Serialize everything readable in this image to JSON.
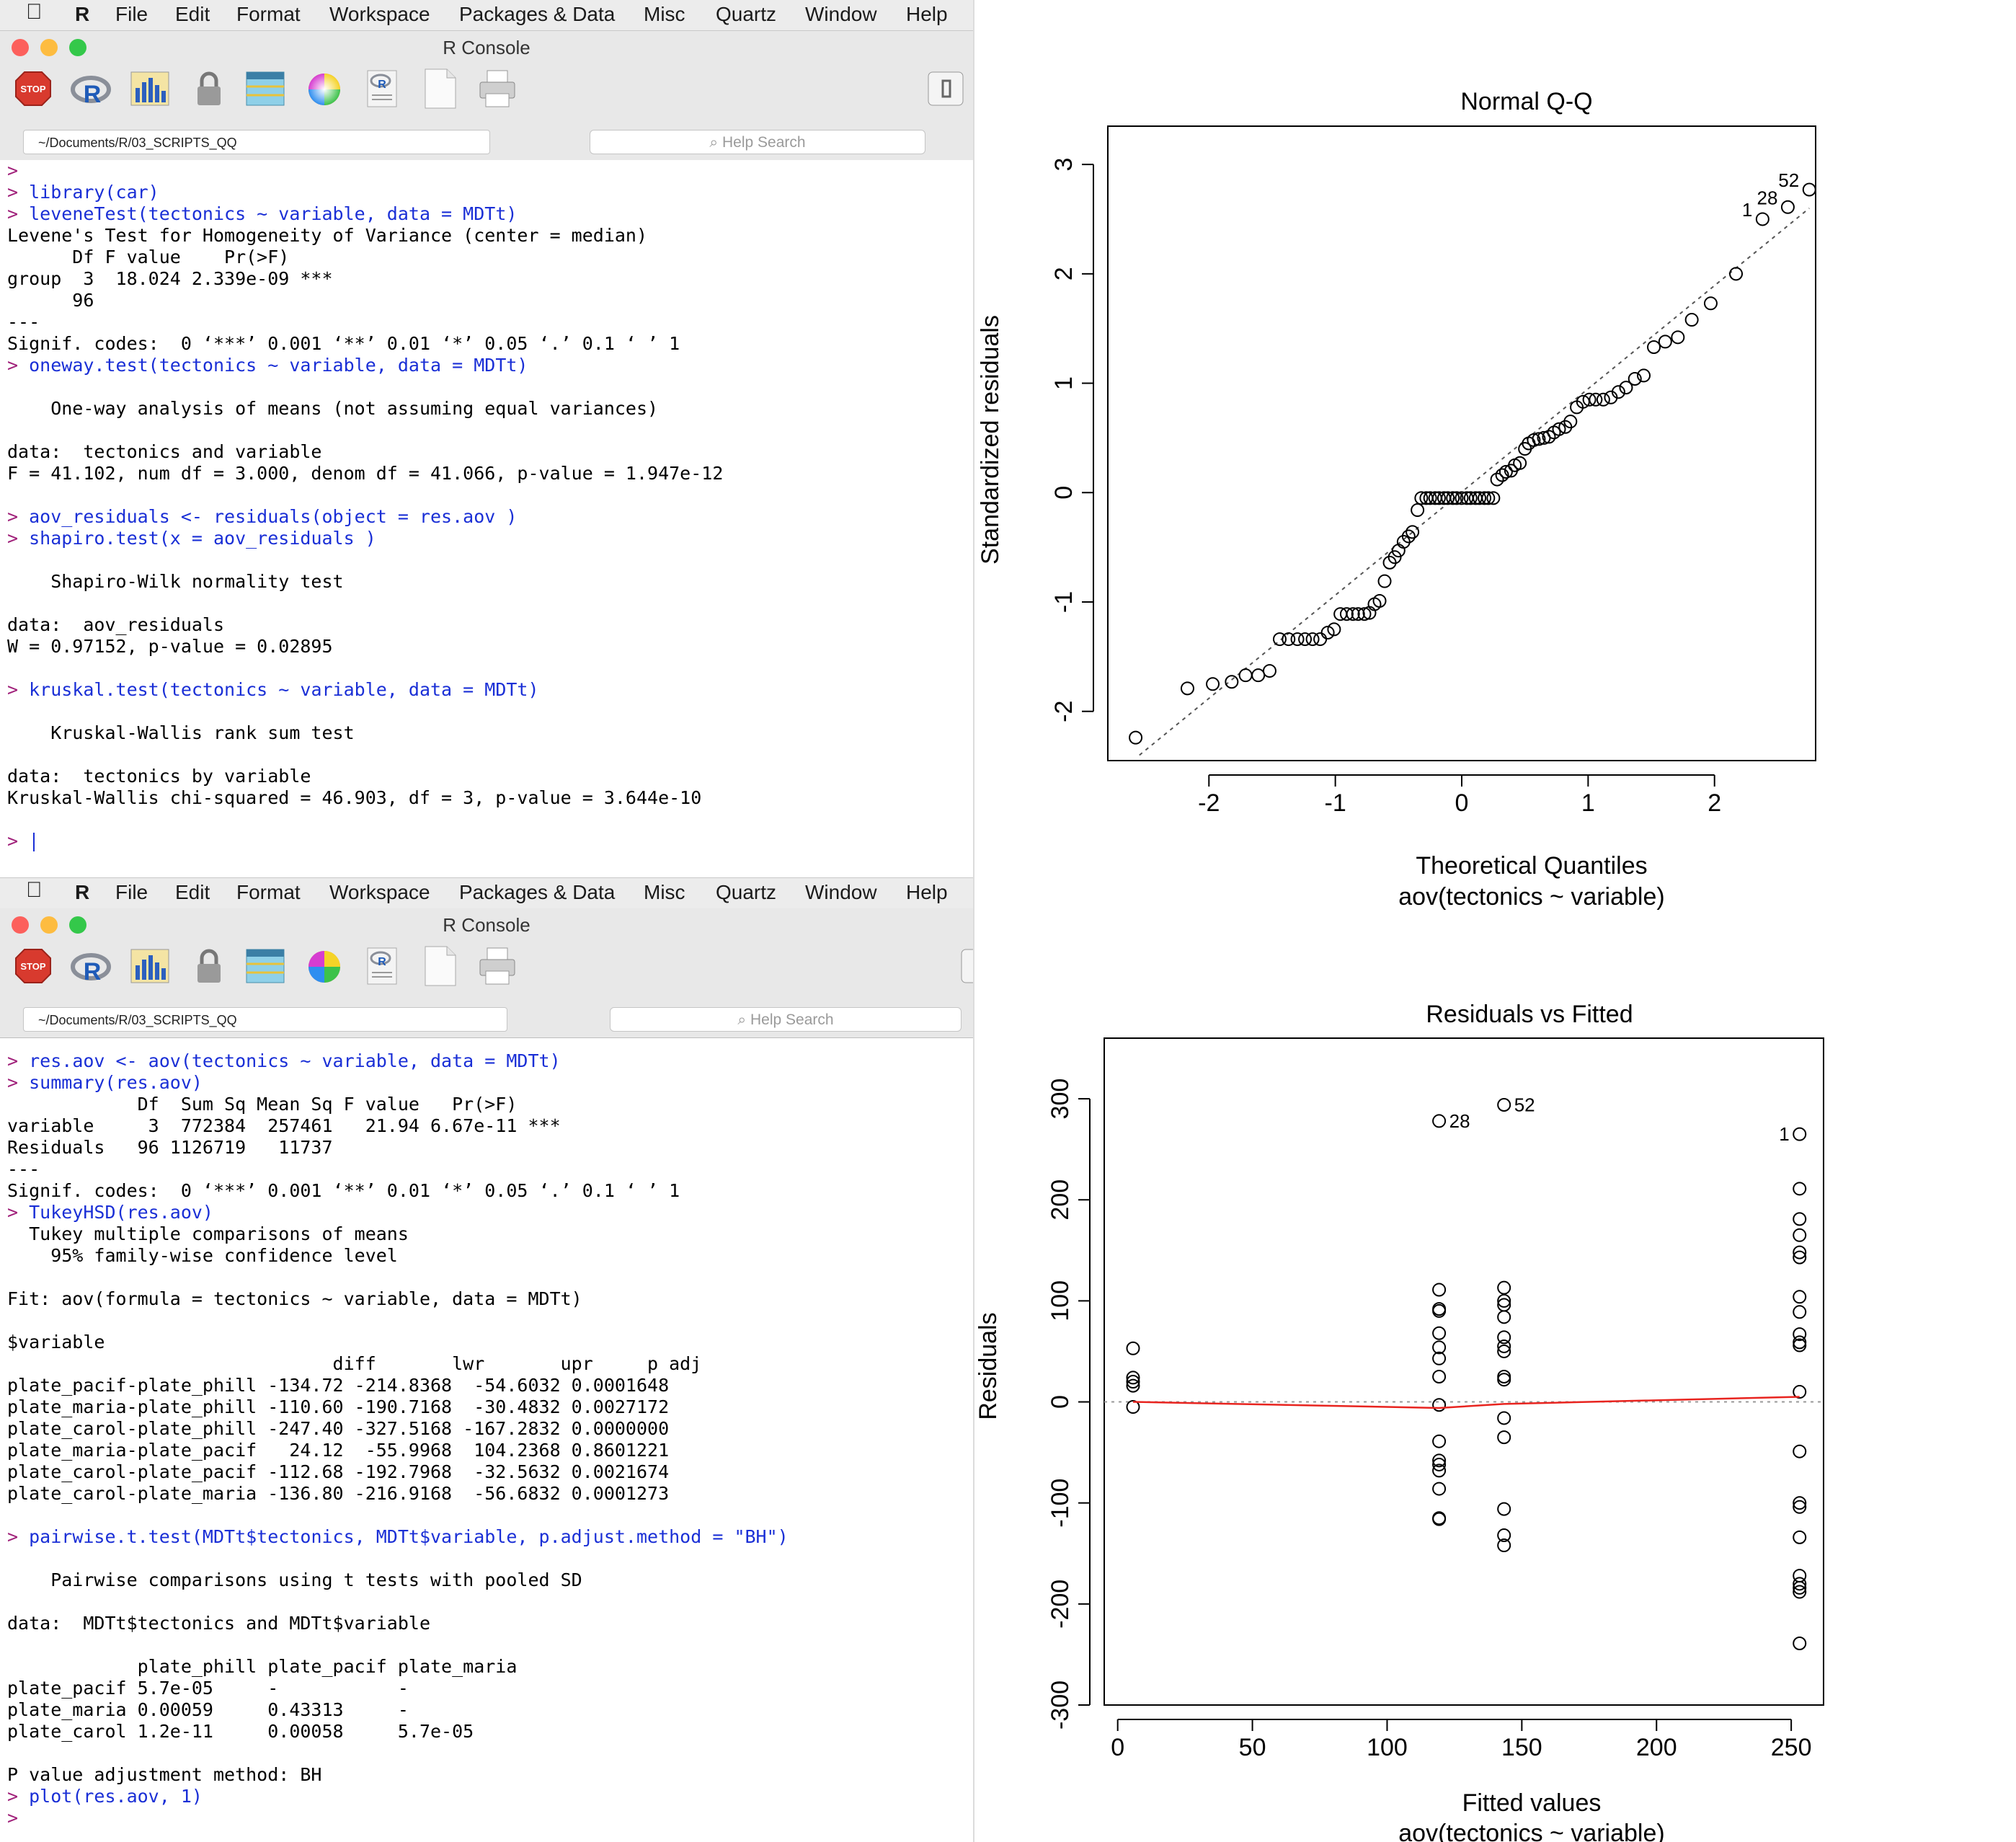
{
  "menu": {
    "apple": "",
    "app": "R",
    "items": [
      "File",
      "Edit",
      "Format",
      "Workspace",
      "Packages & Data",
      "Misc",
      "Quartz",
      "Window",
      "Help"
    ]
  },
  "window_title": "R Console",
  "path": "~/Documents/R/03_SCRIPTS_QQ",
  "help_placeholder": "Help Search",
  "top_console": [
    {
      "p": ">",
      "t": "",
      "c": false
    },
    {
      "p": ">",
      "t": "library(car)",
      "c": true
    },
    {
      "p": ">",
      "t": "leveneTest(tectonics ~ variable, data = MDTt)",
      "c": true
    },
    {
      "p": "",
      "t": "Levene's Test for Homogeneity of Variance (center = median)",
      "c": false
    },
    {
      "p": "",
      "t": "      Df F value    Pr(>F)    ",
      "c": false
    },
    {
      "p": "",
      "t": "group  3  18.024 2.339e-09 ***",
      "c": false
    },
    {
      "p": "",
      "t": "      96                      ",
      "c": false
    },
    {
      "p": "",
      "t": "---",
      "c": false
    },
    {
      "p": "",
      "t": "Signif. codes:  0 ‘***’ 0.001 ‘**’ 0.01 ‘*’ 0.05 ‘.’ 0.1 ‘ ’ 1",
      "c": false
    },
    {
      "p": ">",
      "t": "oneway.test(tectonics ~ variable, data = MDTt)",
      "c": true
    },
    {
      "p": "",
      "t": "",
      "c": false
    },
    {
      "p": "",
      "t": "    One-way analysis of means (not assuming equal variances)",
      "c": false
    },
    {
      "p": "",
      "t": "",
      "c": false
    },
    {
      "p": "",
      "t": "data:  tectonics and variable",
      "c": false
    },
    {
      "p": "",
      "t": "F = 41.102, num df = 3.000, denom df = 41.066, p-value = 1.947e-12",
      "c": false
    },
    {
      "p": "",
      "t": "",
      "c": false
    },
    {
      "p": ">",
      "t": "aov_residuals <- residuals(object = res.aov )",
      "c": true
    },
    {
      "p": ">",
      "t": "shapiro.test(x = aov_residuals )",
      "c": true
    },
    {
      "p": "",
      "t": "",
      "c": false
    },
    {
      "p": "",
      "t": "    Shapiro-Wilk normality test",
      "c": false
    },
    {
      "p": "",
      "t": "",
      "c": false
    },
    {
      "p": "",
      "t": "data:  aov_residuals",
      "c": false
    },
    {
      "p": "",
      "t": "W = 0.97152, p-value = 0.02895",
      "c": false
    },
    {
      "p": "",
      "t": "",
      "c": false
    },
    {
      "p": ">",
      "t": "kruskal.test(tectonics ~ variable, data = MDTt)",
      "c": true
    },
    {
      "p": "",
      "t": "",
      "c": false
    },
    {
      "p": "",
      "t": "    Kruskal-Wallis rank sum test",
      "c": false
    },
    {
      "p": "",
      "t": "",
      "c": false
    },
    {
      "p": "",
      "t": "data:  tectonics by variable",
      "c": false
    },
    {
      "p": "",
      "t": "Kruskal-Wallis chi-squared = 46.903, df = 3, p-value = 3.644e-10",
      "c": false
    },
    {
      "p": "",
      "t": "",
      "c": false
    },
    {
      "p": ">",
      "t": "",
      "c": true,
      "cursor": true
    }
  ],
  "bottom_console": [
    {
      "p": ">",
      "t": "res.aov <- aov(tectonics ~ variable, data = MDTt)",
      "c": true
    },
    {
      "p": ">",
      "t": "summary(res.aov)",
      "c": true
    },
    {
      "p": "",
      "t": "            Df  Sum Sq Mean Sq F value   Pr(>F)    ",
      "c": false
    },
    {
      "p": "",
      "t": "variable     3  772384  257461   21.94 6.67e-11 ***",
      "c": false
    },
    {
      "p": "",
      "t": "Residuals   96 1126719   11737                     ",
      "c": false
    },
    {
      "p": "",
      "t": "---",
      "c": false
    },
    {
      "p": "",
      "t": "Signif. codes:  0 ‘***’ 0.001 ‘**’ 0.01 ‘*’ 0.05 ‘.’ 0.1 ‘ ’ 1",
      "c": false
    },
    {
      "p": ">",
      "t": "TukeyHSD(res.aov)",
      "c": true
    },
    {
      "p": "",
      "t": "  Tukey multiple comparisons of means",
      "c": false
    },
    {
      "p": "",
      "t": "    95% family-wise confidence level",
      "c": false
    },
    {
      "p": "",
      "t": "",
      "c": false
    },
    {
      "p": "",
      "t": "Fit: aov(formula = tectonics ~ variable, data = MDTt)",
      "c": false
    },
    {
      "p": "",
      "t": "",
      "c": false
    },
    {
      "p": "",
      "t": "$variable",
      "c": false
    },
    {
      "p": "",
      "t": "                              diff       lwr       upr     p adj",
      "c": false
    },
    {
      "p": "",
      "t": "plate_pacif-plate_phill -134.72 -214.8368  -54.6032 0.0001648",
      "c": false
    },
    {
      "p": "",
      "t": "plate_maria-plate_phill -110.60 -190.7168  -30.4832 0.0027172",
      "c": false
    },
    {
      "p": "",
      "t": "plate_carol-plate_phill -247.40 -327.5168 -167.2832 0.0000000",
      "c": false
    },
    {
      "p": "",
      "t": "plate_maria-plate_pacif   24.12  -55.9968  104.2368 0.8601221",
      "c": false
    },
    {
      "p": "",
      "t": "plate_carol-plate_pacif -112.68 -192.7968  -32.5632 0.0021674",
      "c": false
    },
    {
      "p": "",
      "t": "plate_carol-plate_maria -136.80 -216.9168  -56.6832 0.0001273",
      "c": false
    },
    {
      "p": "",
      "t": "",
      "c": false
    },
    {
      "p": ">",
      "t": "pairwise.t.test(MDTt$tectonics, MDTt$variable, p.adjust.method = \"BH\")",
      "c": true
    },
    {
      "p": "",
      "t": "",
      "c": false
    },
    {
      "p": "",
      "t": "    Pairwise comparisons using t tests with pooled SD",
      "c": false
    },
    {
      "p": "",
      "t": "",
      "c": false
    },
    {
      "p": "",
      "t": "data:  MDTt$tectonics and MDTt$variable",
      "c": false
    },
    {
      "p": "",
      "t": "",
      "c": false
    },
    {
      "p": "",
      "t": "            plate_phill plate_pacif plate_maria",
      "c": false
    },
    {
      "p": "",
      "t": "plate_pacif 5.7e-05     -           -          ",
      "c": false
    },
    {
      "p": "",
      "t": "plate_maria 0.00059     0.43313     -          ",
      "c": false
    },
    {
      "p": "",
      "t": "plate_carol 1.2e-11     0.00058     5.7e-05    ",
      "c": false
    },
    {
      "p": "",
      "t": "",
      "c": false
    },
    {
      "p": "",
      "t": "P value adjustment method: BH",
      "c": false
    },
    {
      "p": ">",
      "t": "plot(res.aov, 1)",
      "c": true
    },
    {
      "p": ">",
      "t": "",
      "c": true
    }
  ],
  "colors": {
    "prompt": "#a0207a",
    "command": "#1a2fd6",
    "close": "#fc605c",
    "minimize": "#fdbc40",
    "zoom": "#34c84a",
    "fit_line": "#e8241f"
  },
  "icons": [
    "stop-icon",
    "r-logo-icon",
    "bar-chart-icon",
    "lock-icon",
    "table-icon",
    "color-wheel-icon",
    "script-icon",
    "new-document-icon",
    "print-icon",
    "sidebar-toggle-icon"
  ],
  "chart_data": [
    {
      "type": "scatter",
      "title": "Normal Q-Q",
      "xlabel": "Theoretical Quantiles",
      "subtitle": "aov(tectonics ~ variable)",
      "ylabel": "Standardized residuals",
      "xlim": [
        -2.8,
        2.8
      ],
      "ylim": [
        -2.45,
        3.35
      ],
      "xticks": [
        -2,
        -1,
        0,
        1,
        2
      ],
      "yticks": [
        -2,
        -1,
        0,
        1,
        2,
        3
      ],
      "reference_line": [
        [
          -2.55,
          -2.4
        ],
        [
          2.75,
          2.6
        ]
      ],
      "points": [
        [
          -2.58,
          -2.24
        ],
        [
          -2.17,
          -1.79
        ],
        [
          -1.97,
          -1.75
        ],
        [
          -1.82,
          -1.73
        ],
        [
          -1.71,
          -1.67
        ],
        [
          -1.61,
          -1.67
        ],
        [
          -1.52,
          -1.63
        ],
        [
          -1.44,
          -1.34
        ],
        [
          -1.37,
          -1.34
        ],
        [
          -1.3,
          -1.34
        ],
        [
          -1.24,
          -1.34
        ],
        [
          -1.18,
          -1.34
        ],
        [
          -1.12,
          -1.34
        ],
        [
          -1.06,
          -1.28
        ],
        [
          -1.01,
          -1.25
        ],
        [
          -0.96,
          -1.11
        ],
        [
          -0.91,
          -1.11
        ],
        [
          -0.86,
          -1.11
        ],
        [
          -0.82,
          -1.11
        ],
        [
          -0.77,
          -1.11
        ],
        [
          -0.73,
          -1.1
        ],
        [
          -0.69,
          -1.02
        ],
        [
          -0.65,
          -0.99
        ],
        [
          -0.61,
          -0.81
        ],
        [
          -0.57,
          -0.64
        ],
        [
          -0.53,
          -0.59
        ],
        [
          -0.5,
          -0.53
        ],
        [
          -0.46,
          -0.45
        ],
        [
          -0.42,
          -0.4
        ],
        [
          -0.39,
          -0.36
        ],
        [
          -0.35,
          -0.16
        ],
        [
          -0.32,
          -0.05
        ],
        [
          -0.28,
          -0.05
        ],
        [
          -0.25,
          -0.05
        ],
        [
          -0.21,
          -0.05
        ],
        [
          -0.18,
          -0.05
        ],
        [
          -0.14,
          -0.05
        ],
        [
          -0.11,
          -0.05
        ],
        [
          -0.07,
          -0.05
        ],
        [
          -0.04,
          -0.05
        ],
        [
          0.0,
          -0.05
        ],
        [
          0.04,
          -0.05
        ],
        [
          0.07,
          -0.05
        ],
        [
          0.11,
          -0.05
        ],
        [
          0.14,
          -0.05
        ],
        [
          0.18,
          -0.05
        ],
        [
          0.21,
          -0.05
        ],
        [
          0.25,
          -0.05
        ],
        [
          0.28,
          0.12
        ],
        [
          0.32,
          0.16
        ],
        [
          0.35,
          0.19
        ],
        [
          0.39,
          0.2
        ],
        [
          0.42,
          0.25
        ],
        [
          0.46,
          0.27
        ],
        [
          0.5,
          0.4
        ],
        [
          0.53,
          0.45
        ],
        [
          0.57,
          0.48
        ],
        [
          0.61,
          0.49
        ],
        [
          0.65,
          0.5
        ],
        [
          0.69,
          0.51
        ],
        [
          0.73,
          0.55
        ],
        [
          0.77,
          0.58
        ],
        [
          0.82,
          0.6
        ],
        [
          0.86,
          0.65
        ],
        [
          0.91,
          0.78
        ],
        [
          0.96,
          0.83
        ],
        [
          1.01,
          0.85
        ],
        [
          1.06,
          0.85
        ],
        [
          1.12,
          0.85
        ],
        [
          1.18,
          0.87
        ],
        [
          1.24,
          0.92
        ],
        [
          1.3,
          0.96
        ],
        [
          1.37,
          1.04
        ],
        [
          1.44,
          1.07
        ],
        [
          1.52,
          1.33
        ],
        [
          1.61,
          1.38
        ],
        [
          1.71,
          1.42
        ],
        [
          1.82,
          1.58
        ],
        [
          1.97,
          1.73
        ],
        [
          2.17,
          2.0
        ],
        [
          2.38,
          2.5
        ],
        [
          2.58,
          2.61
        ],
        [
          2.75,
          2.77
        ]
      ],
      "point_labels": [
        {
          "text": "1",
          "point": [
            2.38,
            2.5
          ]
        },
        {
          "text": "28",
          "point": [
            2.58,
            2.61
          ]
        },
        {
          "text": "52",
          "point": [
            2.75,
            2.77
          ]
        }
      ]
    },
    {
      "type": "scatter",
      "title": "Residuals vs Fitted",
      "xlabel": "Fitted values",
      "subtitle": "aov(tectonics ~ variable)",
      "ylabel": "Residuals",
      "xlim": [
        -5,
        262
      ],
      "ylim": [
        -300,
        360
      ],
      "xticks": [
        0,
        50,
        100,
        150,
        200,
        250
      ],
      "yticks": [
        -300,
        -200,
        -100,
        0,
        100,
        200,
        300
      ],
      "groups": [
        {
          "x": 5.7,
          "residuals": [
            53,
            24,
            20,
            16,
            -5
          ]
        },
        {
          "x": 119.3,
          "residuals": [
            278,
            111,
            92,
            90,
            68,
            54,
            43,
            25,
            -3,
            -39,
            -58,
            -62,
            -68,
            -86,
            -115,
            -116
          ]
        },
        {
          "x": 143.4,
          "residuals": [
            294,
            113,
            100,
            96,
            84,
            64,
            55,
            50,
            25,
            22,
            -16,
            -35,
            -106,
            -132,
            -142
          ]
        },
        {
          "x": 253.1,
          "residuals": [
            265,
            211,
            181,
            165,
            148,
            143,
            104,
            89,
            67,
            59,
            56,
            10,
            -49,
            -100,
            -104,
            -134,
            -172,
            -180,
            -184,
            -188,
            -239
          ]
        }
      ],
      "smooth_line": [
        [
          5.7,
          0
        ],
        [
          119.3,
          -6
        ],
        [
          143.4,
          -2
        ],
        [
          253.1,
          5
        ]
      ],
      "point_labels": [
        {
          "text": "28",
          "point": [
            119.3,
            278
          ]
        },
        {
          "text": "52",
          "point": [
            143.4,
            294
          ]
        },
        {
          "text": "1",
          "point": [
            253.1,
            265
          ]
        }
      ]
    }
  ]
}
